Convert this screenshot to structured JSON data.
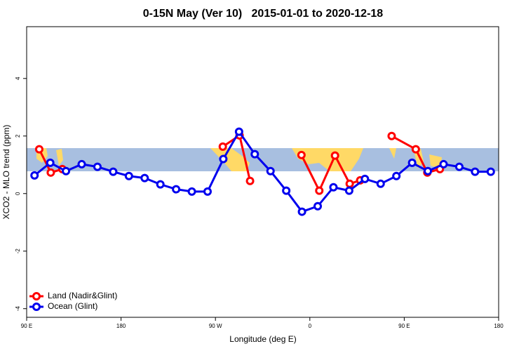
{
  "chart_data": {
    "type": "line",
    "title": "0-15N May (Ver 10)   2015-01-01 to 2020-12-18",
    "x_label": "Longitude (deg E)",
    "y_label": "XCO2 - MLO trend (ppm)",
    "xlim": [
      90,
      540
    ],
    "xticks": [
      {
        "value": 90,
        "label": "90 E"
      },
      {
        "value": 180,
        "label": "180"
      },
      {
        "value": 270,
        "label": "90 W"
      },
      {
        "value": 360,
        "label": "0"
      },
      {
        "value": 450,
        "label": "90 E"
      },
      {
        "value": 540,
        "label": "180"
      }
    ],
    "ylim": [
      -4.3,
      5.8
    ],
    "yticks": [
      -4,
      -2,
      0,
      2,
      4
    ],
    "legend": "bottom-left",
    "series": [
      {
        "name": "Land (Nadir&Glint)",
        "color": "#ff0000",
        "x": [
          102,
          113,
          124,
          null,
          277,
          293,
          303,
          null,
          352,
          369,
          384,
          398,
          408,
          null,
          438,
          461,
          472,
          484
        ],
        "values": [
          1.54,
          0.73,
          0.85,
          null,
          1.63,
          2.02,
          0.44,
          null,
          1.34,
          0.1,
          1.32,
          0.34,
          0.46,
          null,
          2.0,
          1.54,
          0.73,
          0.85
        ]
      },
      {
        "name": "Ocean (Glint)",
        "color": "#0000ee",
        "x": [
          97.5,
          112.5,
          127.5,
          142.5,
          157.5,
          172.5,
          187.5,
          202.5,
          217.5,
          232.5,
          247.5,
          262.5,
          277.5,
          292.5,
          307.5,
          322.5,
          337.5,
          352.5,
          367.5,
          382.5,
          397.5,
          412.5,
          427.5,
          442.5,
          457.5,
          472.5,
          487.5,
          502.5,
          517.5,
          532.5
        ],
        "values": [
          0.63,
          1.07,
          0.78,
          1.02,
          0.93,
          0.76,
          0.61,
          0.54,
          0.32,
          0.15,
          0.07,
          0.07,
          1.2,
          2.15,
          1.37,
          0.78,
          0.1,
          -0.63,
          -0.44,
          0.22,
          0.1,
          0.51,
          0.34,
          0.61,
          1.07,
          0.78,
          1.02,
          0.93,
          0.76,
          0.76
        ]
      }
    ]
  }
}
